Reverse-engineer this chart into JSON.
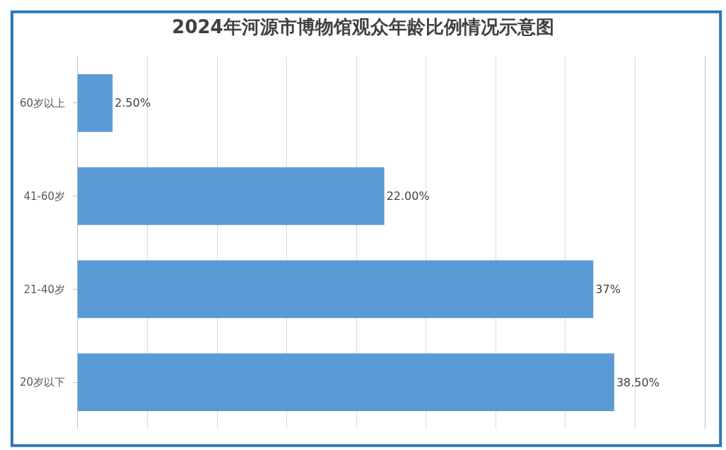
{
  "chart_data": {
    "type": "bar",
    "orientation": "horizontal",
    "title": "2024年河源市博物馆观众年龄比例情况示意图",
    "categories": [
      "60岁以上",
      "41-60岁",
      "21-40岁",
      "20岁以下"
    ],
    "values": [
      2.5,
      22,
      37,
      38.5
    ],
    "value_labels": [
      "2.50%",
      "22.00%",
      "37%",
      "38.50%"
    ],
    "color": "#5b9bd5",
    "xlim": [
      0,
      45
    ],
    "xticks": [
      {
        "value": 0,
        "label": null
      },
      {
        "value": 5,
        "label": null
      },
      {
        "value": 10,
        "label": null
      },
      {
        "value": 15,
        "label": null
      },
      {
        "value": 20,
        "label": null
      },
      {
        "value": 25,
        "label": null
      },
      {
        "value": 30,
        "label": null
      },
      {
        "value": 35,
        "label": null
      },
      {
        "value": 40,
        "label": null
      },
      {
        "value": 45,
        "label": null
      }
    ],
    "grid": "x",
    "tick_labels": "y",
    "legend": false
  }
}
